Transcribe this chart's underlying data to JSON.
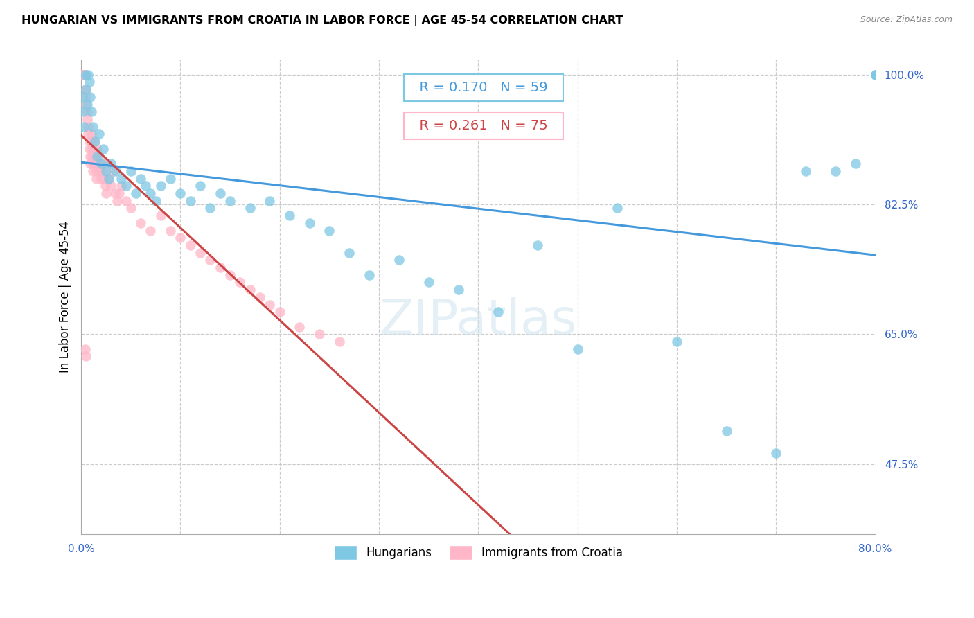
{
  "title": "HUNGARIAN VS IMMIGRANTS FROM CROATIA IN LABOR FORCE | AGE 45-54 CORRELATION CHART",
  "source": "Source: ZipAtlas.com",
  "ylabel": "In Labor Force | Age 45-54",
  "xlim": [
    0.0,
    0.8
  ],
  "ylim": [
    0.38,
    1.02
  ],
  "xticks": [
    0.0,
    0.1,
    0.2,
    0.3,
    0.4,
    0.5,
    0.6,
    0.7,
    0.8
  ],
  "xticklabels": [
    "0.0%",
    "",
    "",
    "",
    "",
    "",
    "",
    "",
    "80.0%"
  ],
  "yticks": [
    0.475,
    0.65,
    0.825,
    1.0
  ],
  "yticklabels": [
    "47.5%",
    "65.0%",
    "82.5%",
    "100.0%"
  ],
  "blue_color": "#7ec8e3",
  "pink_color": "#ffb6c8",
  "blue_line_color": "#4499dd",
  "pink_line_color": "#cc4444",
  "legend_blue_label": "Hungarians",
  "legend_pink_label": "Immigrants from Croatia",
  "R_blue": 0.17,
  "N_blue": 59,
  "R_pink": 0.261,
  "N_pink": 75,
  "watermark_text": "ZIPatlas",
  "blue_scatter_x": [
    0.001,
    0.002,
    0.003,
    0.004,
    0.005,
    0.006,
    0.007,
    0.008,
    0.009,
    0.01,
    0.012,
    0.014,
    0.016,
    0.018,
    0.02,
    0.022,
    0.025,
    0.028,
    0.03,
    0.035,
    0.04,
    0.045,
    0.05,
    0.055,
    0.06,
    0.065,
    0.07,
    0.075,
    0.08,
    0.09,
    0.1,
    0.11,
    0.12,
    0.13,
    0.14,
    0.15,
    0.17,
    0.19,
    0.21,
    0.23,
    0.25,
    0.27,
    0.29,
    0.32,
    0.35,
    0.38,
    0.42,
    0.46,
    0.5,
    0.54,
    0.6,
    0.65,
    0.7,
    0.73,
    0.76,
    0.78,
    0.8,
    0.8,
    0.8
  ],
  "blue_scatter_y": [
    0.97,
    0.95,
    0.93,
    1.0,
    0.98,
    0.96,
    1.0,
    0.99,
    0.97,
    0.95,
    0.93,
    0.91,
    0.89,
    0.92,
    0.88,
    0.9,
    0.87,
    0.86,
    0.88,
    0.87,
    0.86,
    0.85,
    0.87,
    0.84,
    0.86,
    0.85,
    0.84,
    0.83,
    0.85,
    0.86,
    0.84,
    0.83,
    0.85,
    0.82,
    0.84,
    0.83,
    0.82,
    0.83,
    0.81,
    0.8,
    0.79,
    0.76,
    0.73,
    0.75,
    0.72,
    0.71,
    0.68,
    0.77,
    0.63,
    0.82,
    0.64,
    0.52,
    0.49,
    0.87,
    0.87,
    0.88,
    1.0,
    1.0,
    1.0
  ],
  "pink_scatter_x": [
    0.001,
    0.001,
    0.001,
    0.002,
    0.002,
    0.002,
    0.003,
    0.003,
    0.003,
    0.004,
    0.004,
    0.004,
    0.005,
    0.005,
    0.005,
    0.006,
    0.006,
    0.007,
    0.007,
    0.008,
    0.008,
    0.009,
    0.009,
    0.01,
    0.01,
    0.011,
    0.011,
    0.012,
    0.012,
    0.013,
    0.013,
    0.014,
    0.014,
    0.015,
    0.015,
    0.016,
    0.017,
    0.018,
    0.019,
    0.02,
    0.021,
    0.022,
    0.023,
    0.024,
    0.025,
    0.026,
    0.028,
    0.03,
    0.032,
    0.034,
    0.036,
    0.038,
    0.04,
    0.045,
    0.05,
    0.06,
    0.07,
    0.08,
    0.09,
    0.1,
    0.11,
    0.12,
    0.13,
    0.14,
    0.15,
    0.16,
    0.17,
    0.18,
    0.19,
    0.2,
    0.22,
    0.24,
    0.26,
    0.004,
    0.005
  ],
  "pink_scatter_y": [
    1.0,
    1.0,
    1.0,
    1.0,
    1.0,
    1.0,
    1.0,
    1.0,
    1.0,
    1.0,
    1.0,
    1.0,
    0.98,
    0.97,
    0.96,
    0.95,
    0.94,
    0.93,
    0.92,
    0.91,
    0.9,
    0.89,
    0.88,
    0.92,
    0.91,
    0.9,
    0.89,
    0.88,
    0.87,
    0.91,
    0.9,
    0.89,
    0.88,
    0.87,
    0.86,
    0.9,
    0.89,
    0.88,
    0.87,
    0.86,
    0.88,
    0.87,
    0.86,
    0.85,
    0.84,
    0.88,
    0.86,
    0.85,
    0.87,
    0.84,
    0.83,
    0.84,
    0.85,
    0.83,
    0.82,
    0.8,
    0.79,
    0.81,
    0.79,
    0.78,
    0.77,
    0.76,
    0.75,
    0.74,
    0.73,
    0.72,
    0.71,
    0.7,
    0.69,
    0.68,
    0.66,
    0.65,
    0.64,
    0.63,
    0.62
  ]
}
